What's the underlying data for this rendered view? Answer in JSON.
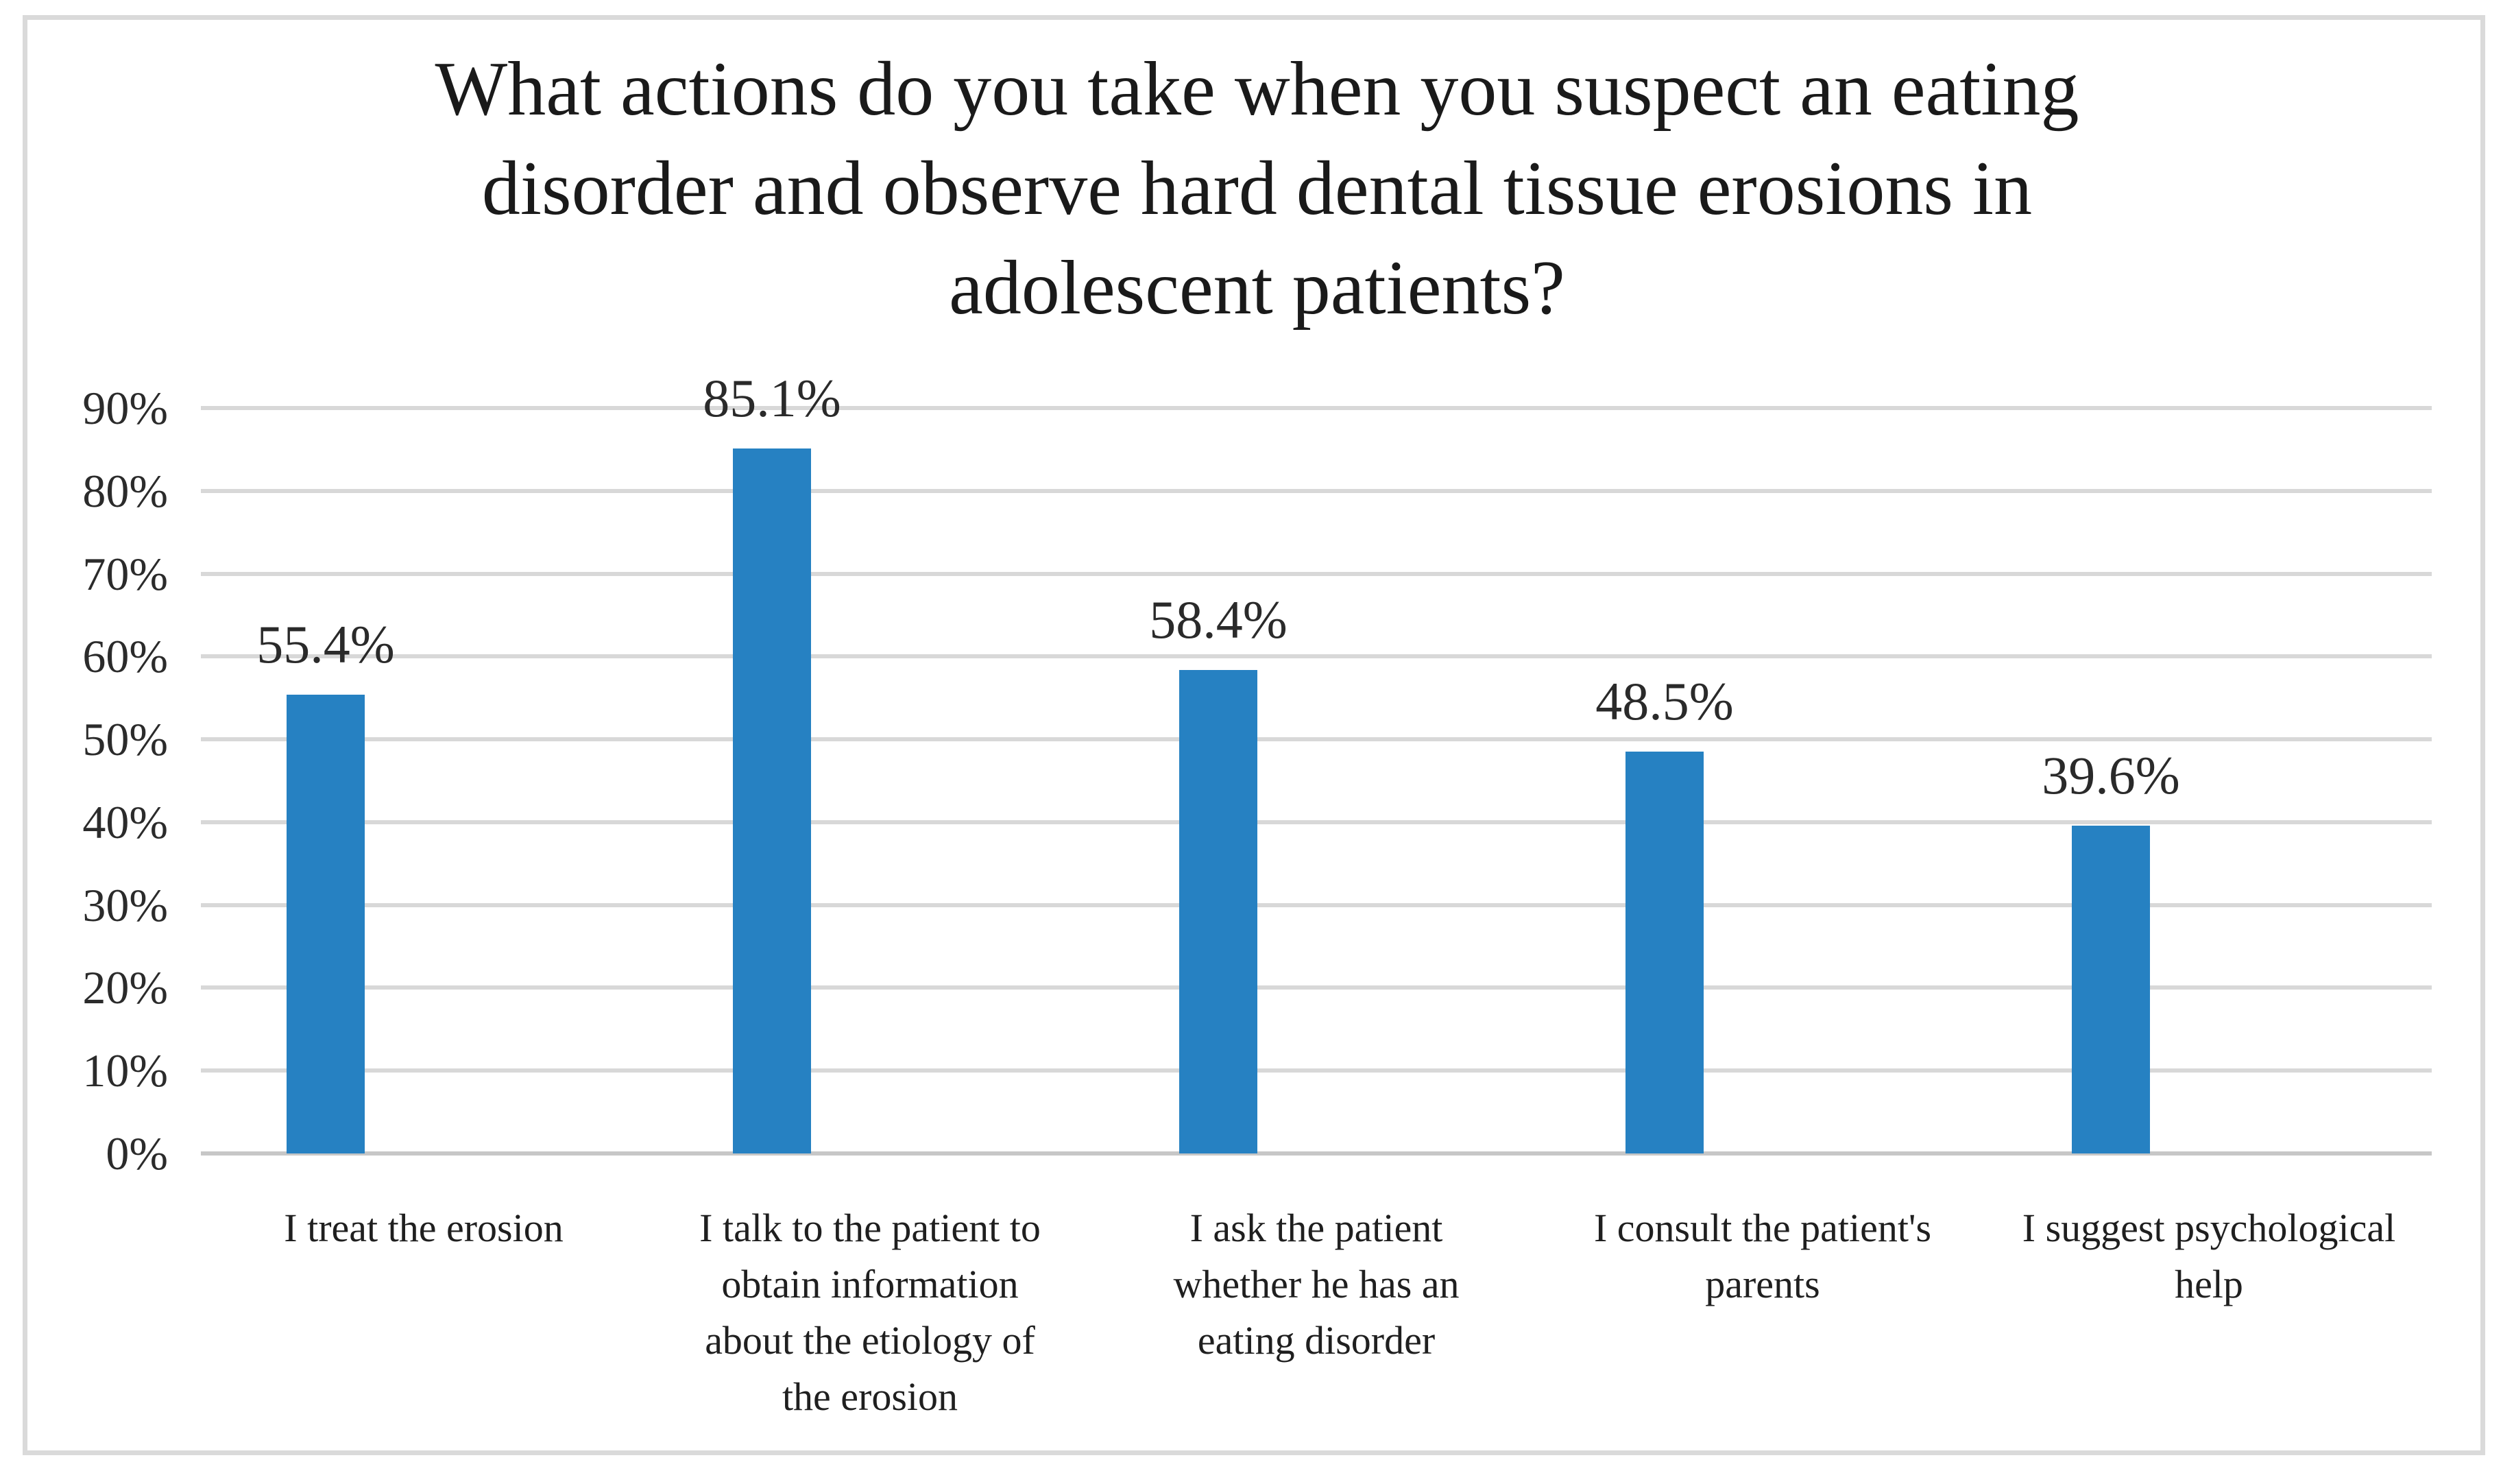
{
  "chart_data": {
    "type": "bar",
    "title": "What actions do you take when you suspect an eating disorder and observe hard dental tissue erosions in adolescent patients?",
    "categories": [
      "I treat the erosion",
      "I talk to the patient to obtain information about the etiology of the erosion",
      "I ask the patient whether he has an eating disorder",
      "I consult the patient's parents",
      "I suggest psychological help"
    ],
    "values": [
      55.4,
      85.1,
      58.4,
      48.5,
      39.6
    ],
    "value_labels": [
      "55.4%",
      "85.1%",
      "58.4%",
      "48.5%",
      "39.6%"
    ],
    "yticks": [
      "0%",
      "10%",
      "20%",
      "30%",
      "40%",
      "50%",
      "60%",
      "70%",
      "80%",
      "90%"
    ],
    "ylim": [
      0,
      90
    ],
    "xlabel": "",
    "ylabel": "",
    "grid": "horizontal",
    "legend": "none",
    "colors": {
      "bar": "#2681c2",
      "gridline": "#d8d8d8",
      "axis_line": "#c7c7c7",
      "title_text": "#1a1a1a",
      "tick_text": "#2b2b2b",
      "frame_border": "#dadada",
      "background": "#ffffff"
    }
  }
}
